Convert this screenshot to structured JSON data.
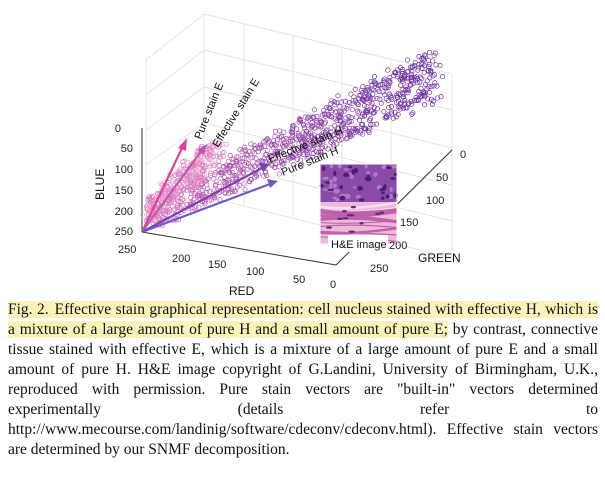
{
  "figure": {
    "axes": {
      "blue_label": "BLUE",
      "red_label": "RED",
      "green_label": "GREEN",
      "blue_ticks": [
        "0",
        "50",
        "100",
        "150",
        "200",
        "250"
      ],
      "red_ticks": [
        "250",
        "200",
        "150",
        "100",
        "50",
        "0"
      ],
      "green_ticks": [
        "0",
        "50",
        "100",
        "150",
        "200",
        "250"
      ]
    },
    "vectors": {
      "pure_e": "Pure stain E",
      "effective_e": "Effective stain E",
      "effective_h": "Effective stain H",
      "pure_h": "Pure stain H"
    },
    "inset_label": "H&E image",
    "colors": {
      "h_cluster": "#6a2fa0",
      "e_cluster": "#d46fb8",
      "pure_e_vector": "#e0409a",
      "effective_e_vector": "#c05aa8",
      "pure_h_vector": "#6b5bc8",
      "effective_h_vector": "#7a3fb5"
    }
  },
  "caption": {
    "fig_no": "Fig. 2.",
    "highlighted": "Effective stain graphical representation: cell nucleus stained with effective H, which is a mixture of a large amount of pure H and a small amount of pure E;",
    "rest": "by contrast, connective tissue stained with effective E, which is a mixture of a large amount of pure E and a small amount of pure H. H&E image copyright of G.Landini, University of Birmingham, U.K., reproduced with permission. Pure stain vectors are \"built-in\" vectors determined experimentally (details refer to http://www.mecourse.com/landinig/software/cdeconv/cdeconv.html). Effective stain vectors are determined by our SNMF decomposition."
  }
}
